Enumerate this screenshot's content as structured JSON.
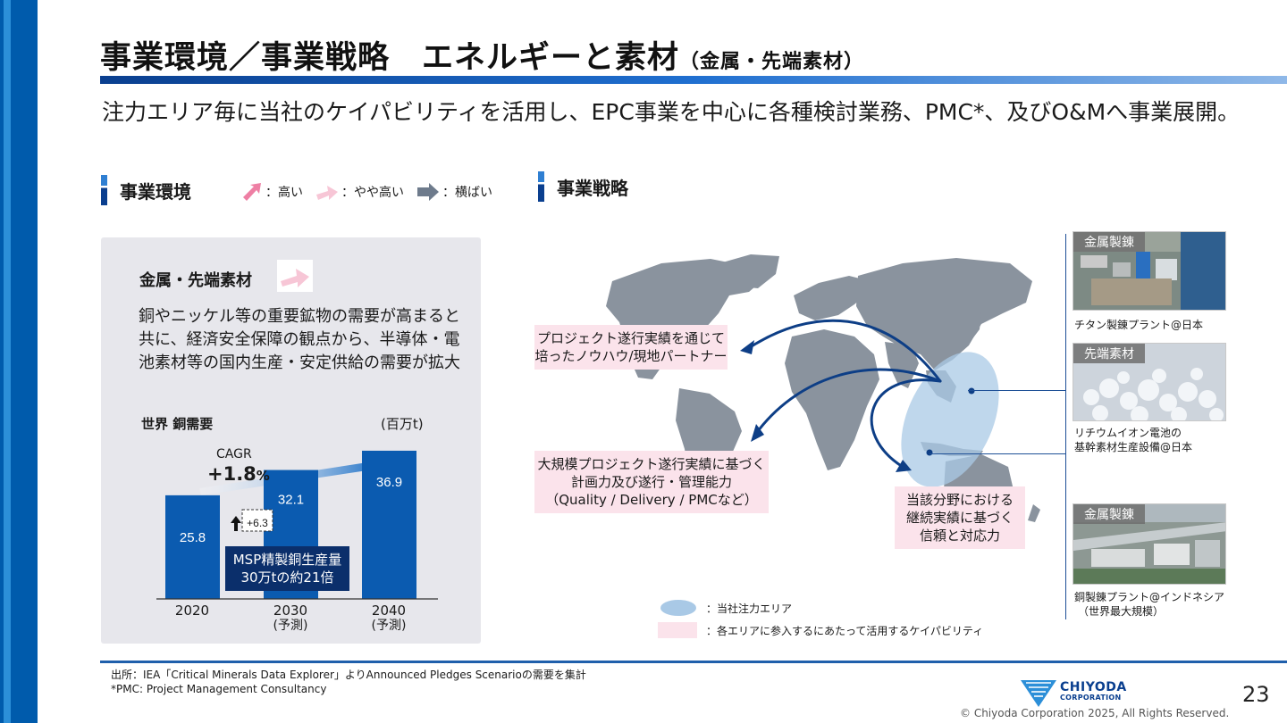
{
  "header": {
    "title_main": "事業環境／事業戦略　エネルギーと素材",
    "title_sub": "（金属・先端素材）",
    "tagline": "注力エリア毎に当社のケイパビリティを活用し、EPC事業を中心に各種検討業務、PMC*、及びO&Mへ事業展開。"
  },
  "environment": {
    "heading": "事業環境",
    "legend": [
      {
        "label": "：高い",
        "color": "#ee7fa4"
      },
      {
        "label": "：やや高い",
        "color": "#f7c6d6"
      },
      {
        "label": "：横ばい",
        "color": "#6e7b8c"
      }
    ],
    "subheading": "金属・先端素材",
    "subheading_arrow": "やや高い",
    "body": "銅やニッケル等の重要鉱物の需要が高まると共に、経済安全保障の観点から、半導体・電池素材等の国内生産・安定供給の需要が拡大",
    "colors": {
      "panel": "#e7e7ec",
      "bar": "#0b5bb0",
      "navy": "#0b2f6b"
    }
  },
  "chart_data": {
    "type": "bar",
    "title": "世界 銅需要",
    "unit": "(百万t)",
    "categories": [
      "2020",
      "2030",
      "2040"
    ],
    "category_notes": [
      "",
      "(予測)",
      "(予測)"
    ],
    "values": [
      25.8,
      32.1,
      36.9
    ],
    "value_labels": [
      "25.8",
      "32.1",
      "36.9"
    ],
    "cagr_label": "CAGR",
    "cagr_value": "+1.8",
    "cagr_unit": "%",
    "delta_label": "+6.3",
    "annotation_line1": "MSP精製銅生産量",
    "annotation_line2": "30万tの約21倍"
  },
  "strategy": {
    "heading": "事業戦略",
    "callouts": [
      {
        "line1": "プロジェクト遂行実績を通じて",
        "line2": "培ったノウハウ/現地パートナー"
      },
      {
        "line1": "大規模プロジェクト遂行実績に基づく",
        "line2": "計画力及び遂行・管理能力",
        "line3": "（Quality / Delivery / PMCなど）"
      },
      {
        "line1": "当該分野における",
        "line2": "継続実績に基づく",
        "line3": "信頼と対応力"
      }
    ],
    "legend": [
      {
        "label": "：当社注力エリア",
        "color": "#a9c9e6"
      },
      {
        "label": "：各エリアに参入するにあたって活用するケイパビリティ",
        "color": "#fbe3eb"
      }
    ],
    "photos": [
      {
        "tag": "金属製錬",
        "caption1": "チタン製錬プラント@日本",
        "caption2": ""
      },
      {
        "tag": "先端素材",
        "caption1": "リチウムイオン電池の",
        "caption2": "基幹素材生産設備@日本"
      },
      {
        "tag": "金属製錬",
        "caption1": "銅製錬プラント@インドネシア",
        "caption2": "（世界最大規模）"
      }
    ],
    "colors": {
      "map": "#8a939e",
      "arrow": "#0d3e86",
      "focus": "#a9c9e6"
    }
  },
  "footer": {
    "source": "出所：IEA「Critical Minerals Data Explorer」よりAnnounced Pledges Scenarioの需要を集計",
    "note": "*PMC: Project Management Consultancy",
    "logo_line1": "CHIYODA",
    "logo_line2": "CORPORATION",
    "page": "23",
    "copyright": "© Chiyoda Corporation 2025, All Rights Reserved."
  }
}
